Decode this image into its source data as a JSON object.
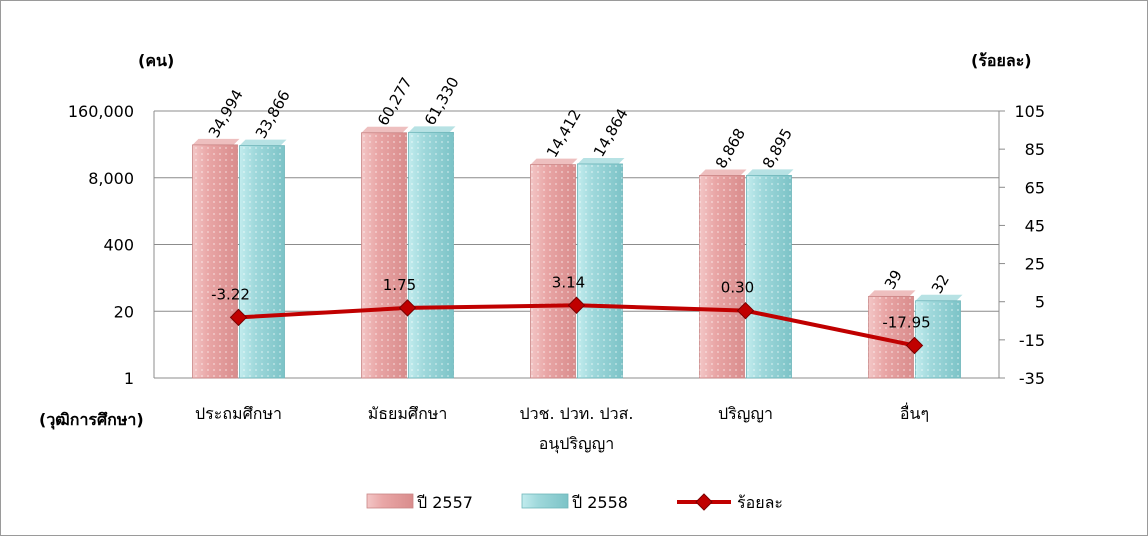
{
  "chart_data": {
    "type": "bar",
    "left_axis_label": "(คน)",
    "right_axis_label": "(ร้อยละ)",
    "category_axis_label": "(วุฒิการศึกษา)",
    "categories": [
      [
        "ประถมศึกษา"
      ],
      [
        "มัธยมศึกษา"
      ],
      [
        "ปวช. ปวท. ปวส.",
        "อนุปริญญา"
      ],
      [
        "ปริญญา"
      ],
      [
        "อื่นๆ"
      ]
    ],
    "left_axis": {
      "scale": "log",
      "ticks": [
        1,
        20,
        400,
        8000,
        160000
      ],
      "tick_labels": [
        "1",
        "20",
        "400",
        "8,000",
        "160,000"
      ],
      "ylim": [
        1,
        160000
      ]
    },
    "right_axis": {
      "scale": "linear",
      "ticks": [
        -35,
        -15,
        5,
        25,
        45,
        65,
        85,
        105
      ],
      "tick_labels": [
        "-35",
        "-15",
        "5",
        "25",
        "45",
        "65",
        "85",
        "105"
      ],
      "ylim": [
        -35,
        105
      ]
    },
    "series": [
      {
        "name": "ปี 2557",
        "kind": "bar",
        "color": "#e8a9a9",
        "values": [
          34994,
          60277,
          14412,
          8868,
          39
        ],
        "labels": [
          "34,994",
          "60,277",
          "14,412",
          "8,868",
          "39"
        ]
      },
      {
        "name": "ปี 2558",
        "kind": "bar",
        "color": "#9fd8db",
        "values": [
          33866,
          61330,
          14864,
          8895,
          32
        ],
        "labels": [
          "33,866",
          "61,330",
          "14,864",
          "8,895",
          "32"
        ]
      },
      {
        "name": "ร้อยละ",
        "kind": "line",
        "axis": "right",
        "color": "#c00000",
        "values": [
          -3.22,
          1.75,
          3.14,
          0.3,
          -17.95
        ],
        "labels": [
          "-3.22",
          "1.75",
          "3.14",
          "0.30",
          "-17.95"
        ]
      }
    ],
    "grid": true,
    "legend_position": "bottom"
  }
}
